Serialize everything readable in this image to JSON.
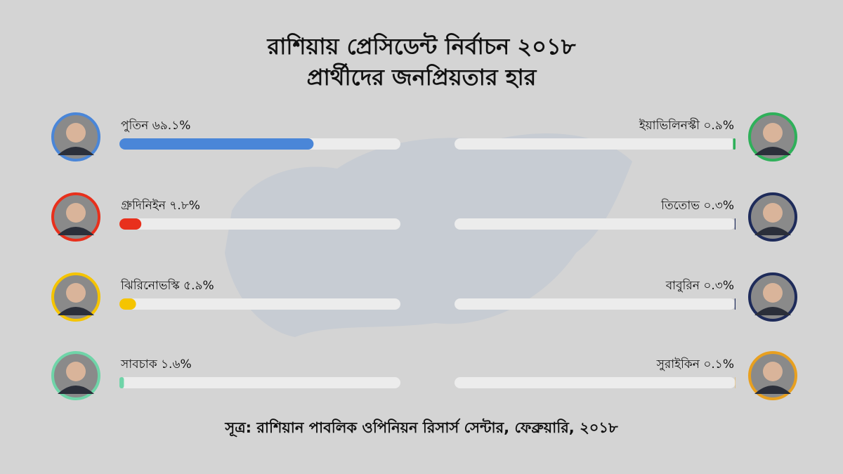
{
  "chart_data": {
    "type": "bar",
    "title": "রাশিয়ায় প্রেসিডেন্ট নির্বাচন ২০১৮",
    "subtitle": "প্রার্থীদের জনপ্রিয়তার হার",
    "categories": [
      "পুতিন",
      "গ্রুদিনিইন",
      "ঝিরিনোভস্কি",
      "সাবচাক",
      "ইয়াভিলিনস্কী",
      "তিতোভ",
      "বাবুরিন",
      "সুরাইকিন"
    ],
    "values": [
      69.1,
      7.8,
      5.9,
      1.6,
      0.9,
      0.3,
      0.3,
      0.1
    ],
    "value_labels": [
      "৬৯.১%",
      "৭.৮%",
      "৫.৯%",
      "১.৬%",
      "০.৯%",
      "০.৩%",
      "০.৩%",
      "০.১%"
    ],
    "colors": [
      "#4a86d8",
      "#e8301c",
      "#f5c400",
      "#6fd4a8",
      "#2fb05a",
      "#1e2b5a",
      "#1e2b5a",
      "#e8a020"
    ],
    "xlim": [
      0,
      100
    ],
    "source": "সূত্র: রাশিয়ান পাবলিক ওপিনিয়ন রিসার্স সেন্টার, ফেব্রুয়ারি, ২০১৮"
  }
}
